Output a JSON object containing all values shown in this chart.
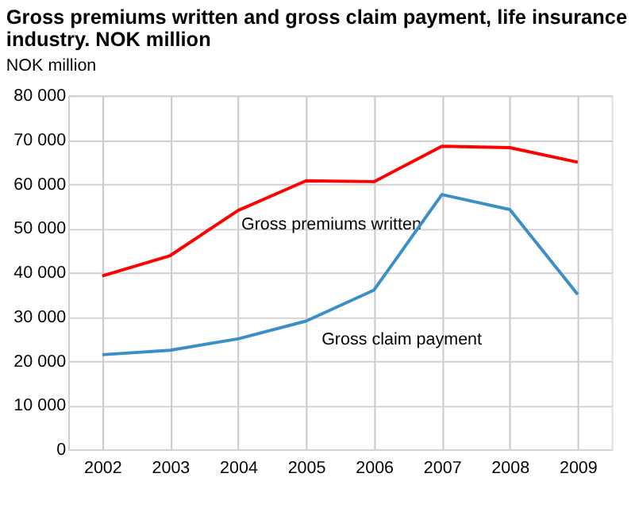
{
  "chart_data": {
    "type": "line",
    "title": "Gross premiums written and gross claim payment, life insurance industry. NOK million",
    "ylabel": "NOK million",
    "categories": [
      "2002",
      "2003",
      "2004",
      "2005",
      "2006",
      "2007",
      "2008",
      "2009"
    ],
    "series": [
      {
        "name": "Gross premiums written",
        "color": "#ff0000",
        "values": [
          39200,
          43800,
          54000,
          60700,
          60500,
          68500,
          68200,
          64900
        ]
      },
      {
        "name": "Gross claim payment",
        "color": "#3a8fc6",
        "values": [
          21400,
          22400,
          25000,
          29000,
          36000,
          57600,
          54200,
          35000
        ]
      }
    ],
    "ylim": [
      0,
      80000
    ],
    "yticks": [
      0,
      10000,
      20000,
      30000,
      40000,
      50000,
      60000,
      70000,
      80000
    ],
    "grid": true,
    "legend": false,
    "marker": "none",
    "line_style": "solid"
  }
}
